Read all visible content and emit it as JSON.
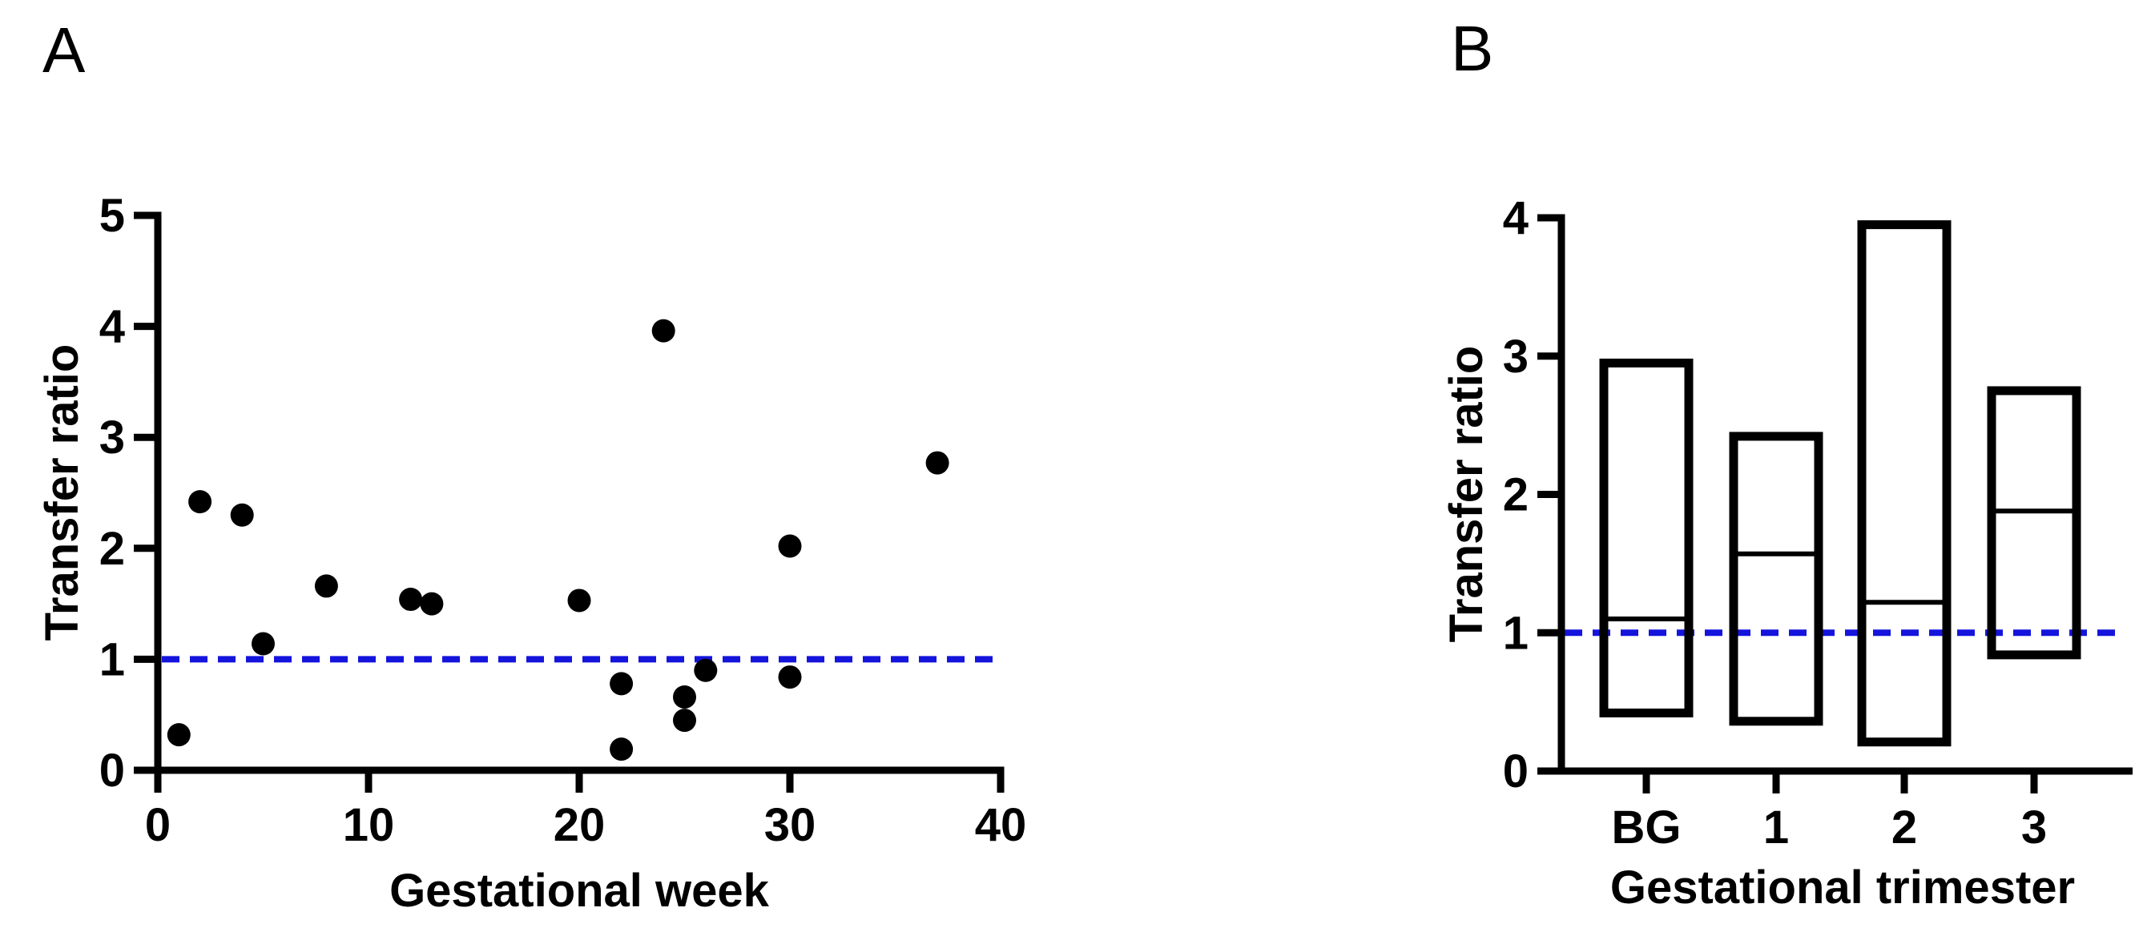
{
  "figure_title": "",
  "colors": {
    "axis": "#000000",
    "marker": "#000000",
    "bar_outline": "#000000",
    "reference_line": "#1414dd",
    "background": "#ffffff"
  },
  "chart_data": [
    {
      "type": "scatter",
      "panel_label": "A",
      "xlabel": "Gestational week",
      "ylabel": "Transfer ratio",
      "x_ticks": [
        0,
        10,
        20,
        30,
        40
      ],
      "y_ticks": [
        0,
        1,
        2,
        3,
        4,
        5
      ],
      "xlim": [
        0,
        40
      ],
      "ylim": [
        0,
        5
      ],
      "grid": false,
      "legend": "none",
      "reference_line": {
        "y": 1,
        "style": "dashed",
        "color": "#1414dd"
      },
      "marker": {
        "shape": "circle",
        "color": "#000000"
      },
      "points": [
        {
          "x": 1,
          "y": 0.32
        },
        {
          "x": 2,
          "y": 2.42
        },
        {
          "x": 4,
          "y": 2.3
        },
        {
          "x": 5,
          "y": 1.14
        },
        {
          "x": 8,
          "y": 1.66
        },
        {
          "x": 12,
          "y": 1.54
        },
        {
          "x": 13,
          "y": 1.5
        },
        {
          "x": 20,
          "y": 1.53
        },
        {
          "x": 22,
          "y": 0.78
        },
        {
          "x": 22,
          "y": 0.19
        },
        {
          "x": 24,
          "y": 3.96
        },
        {
          "x": 25,
          "y": 0.66
        },
        {
          "x": 25,
          "y": 0.45
        },
        {
          "x": 26,
          "y": 0.9
        },
        {
          "x": 30,
          "y": 2.02
        },
        {
          "x": 30,
          "y": 0.84
        },
        {
          "x": 37,
          "y": 2.77
        }
      ]
    },
    {
      "type": "floating-bar",
      "panel_label": "B",
      "xlabel": "Gestational trimester",
      "ylabel": "Transfer ratio",
      "categories": [
        "BG",
        "1",
        "2",
        "3"
      ],
      "y_ticks": [
        0,
        1,
        2,
        3,
        4
      ],
      "ylim": [
        0,
        4
      ],
      "grid": false,
      "legend": "none",
      "reference_line": {
        "y": 1,
        "style": "dashed",
        "color": "#1414dd"
      },
      "bars": [
        {
          "category": "BG",
          "min": 0.42,
          "median": 1.1,
          "max": 2.95
        },
        {
          "category": "1",
          "min": 0.36,
          "median": 1.57,
          "max": 2.42
        },
        {
          "category": "2",
          "min": 0.21,
          "median": 1.22,
          "max": 3.95
        },
        {
          "category": "3",
          "min": 0.84,
          "median": 1.88,
          "max": 2.75
        }
      ]
    }
  ]
}
